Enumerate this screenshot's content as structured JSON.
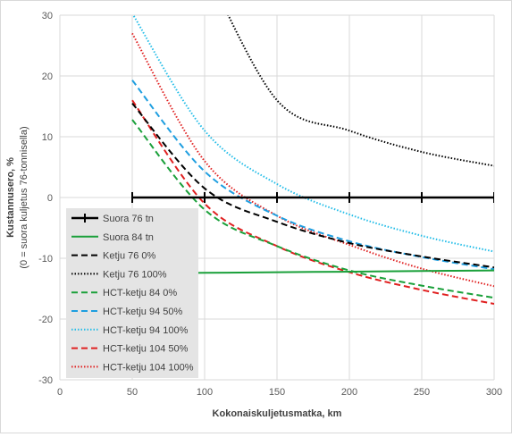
{
  "chart_data": {
    "type": "line",
    "title": "",
    "xlabel": "Kokonaiskuljetusmatka, km",
    "ylabel_line1": "Kustannusero, %",
    "ylabel_line2": "(0 = suora kuljetus 76-tonnisella)",
    "xlim": [
      0,
      300
    ],
    "ylim": [
      -30,
      30
    ],
    "xticks": [
      "0",
      "50",
      "100",
      "150",
      "200",
      "250",
      "300"
    ],
    "yticks": [
      "-30",
      "-20",
      "-10",
      "0",
      "10",
      "20",
      "30"
    ],
    "x": [
      50,
      100,
      150,
      200,
      250,
      300
    ],
    "grid": true,
    "legend_position": "left",
    "series": [
      {
        "name": "Suora 76 tn",
        "color": "#000000",
        "dash": "solid",
        "markers": true,
        "values": [
          0,
          0,
          0,
          0,
          0,
          0
        ]
      },
      {
        "name": "Suora 84 tn",
        "color": "#1aa03a",
        "dash": "solid",
        "markers": false,
        "values": [
          -12.5,
          -12.4,
          -12.3,
          -12.2,
          -12.1,
          -12.0
        ]
      },
      {
        "name": "Ketju 76 0%",
        "color": "#000000",
        "dash": "dashed",
        "markers": false,
        "values": [
          15.5,
          1.5,
          -4.0,
          -7.5,
          -9.7,
          -11.5
        ]
      },
      {
        "name": "Ketju 76 100%",
        "color": "#000000",
        "dash": "dotted",
        "markers": false,
        "values": [
          null,
          38.0,
          16.0,
          11.0,
          7.5,
          5.2
        ]
      },
      {
        "name": "HCT-ketju 84 0%",
        "color": "#1aa03a",
        "dash": "dashed",
        "markers": false,
        "values": [
          12.8,
          -2.0,
          -8.0,
          -12.0,
          -14.5,
          -16.5
        ]
      },
      {
        "name": "HCT-ketju 94 50%",
        "color": "#1e9ee0",
        "dash": "dashed",
        "markers": false,
        "values": [
          19.3,
          4.3,
          -3.0,
          -7.2,
          -9.8,
          -11.8
        ]
      },
      {
        "name": "HCT-ketju 94 100%",
        "color": "#23bde8",
        "dash": "dotted",
        "markers": false,
        "values": [
          30.3,
          11.0,
          2.2,
          -2.8,
          -6.3,
          -8.9
        ]
      },
      {
        "name": "HCT-ketju 104 50%",
        "color": "#e02020",
        "dash": "dashed",
        "markers": false,
        "values": [
          16.0,
          -1.0,
          -8.0,
          -12.3,
          -15.2,
          -17.5
        ]
      },
      {
        "name": "HCT-ketju 104 100%",
        "color": "#e02020",
        "dash": "dotted",
        "markers": false,
        "values": [
          27.0,
          6.0,
          -3.0,
          -7.8,
          -11.7,
          -14.6
        ]
      }
    ]
  }
}
